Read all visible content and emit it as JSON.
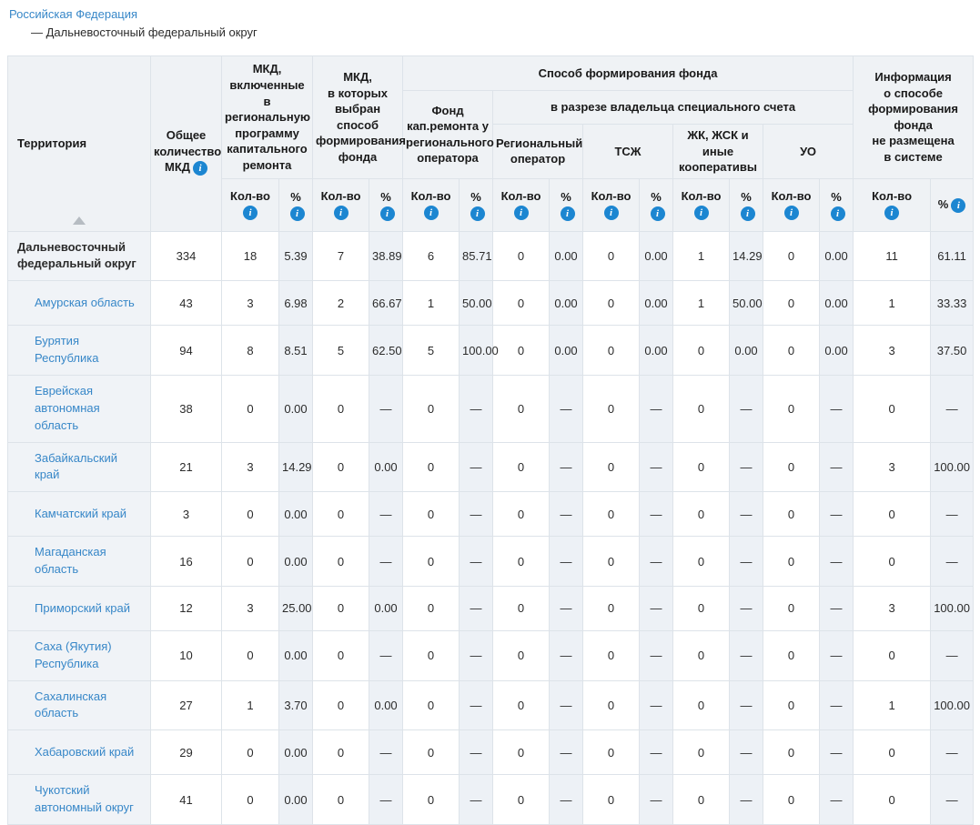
{
  "breadcrumb": {
    "country_link": "Российская Федерация",
    "region_line": "— Дальневосточный федеральный округ"
  },
  "icons": {
    "info_char": "i",
    "sort_direction": "asc"
  },
  "colors": {
    "link_blue": "#3787c8",
    "info_icon_blue": "#1c86d1",
    "header_bg": "#eff2f5",
    "shaded_column_bg": "#edf1f6",
    "territory_column_bg": "#f0f3f7",
    "grid_line": "#dde3e9",
    "sort_arrow_grey": "#b6bcc2"
  },
  "table": {
    "header": {
      "territory": "Территория",
      "total": "Общее\nколичество\nМКД",
      "included": "МКД,\nвключенные в\nрегиональную\nпрограмму\nкапитального\nремонта",
      "method_chosen": "МКД,\nв которых\nвыбран способ\nформирования\nфонда",
      "method_group": "Способ формирования фонда",
      "fund_regional_operator": "Фонд\nкап.ремонта у\nрегионального\nоператора",
      "special_account_group": "в разрезе владельца специального счета",
      "regional_operator": "Региональный\nоператор",
      "tsj": "ТСЖ",
      "jk_jsk": "ЖК, ЖСК и иные\nкооперативы",
      "uo": "УО",
      "not_posted": "Информация\nо способе\nформирования\nфонда\nне размещена\nв системе",
      "qty": "Кол-во",
      "pct": "%"
    },
    "rows": [
      {
        "territory": "Дальневосточный федеральный округ",
        "bold": true,
        "link": false,
        "values": [
          "334",
          "18",
          "5.39",
          "7",
          "38.89",
          "6",
          "85.71",
          "0",
          "0.00",
          "0",
          "0.00",
          "1",
          "14.29",
          "0",
          "0.00",
          "11",
          "61.11"
        ]
      },
      {
        "territory": "Амурская область",
        "bold": false,
        "link": true,
        "values": [
          "43",
          "3",
          "6.98",
          "2",
          "66.67",
          "1",
          "50.00",
          "0",
          "0.00",
          "0",
          "0.00",
          "1",
          "50.00",
          "0",
          "0.00",
          "1",
          "33.33"
        ]
      },
      {
        "territory": "Бурятия Республика",
        "bold": false,
        "link": true,
        "values": [
          "94",
          "8",
          "8.51",
          "5",
          "62.50",
          "5",
          "100.00",
          "0",
          "0.00",
          "0",
          "0.00",
          "0",
          "0.00",
          "0",
          "0.00",
          "3",
          "37.50"
        ]
      },
      {
        "territory": "Еврейская автономная область",
        "bold": false,
        "link": true,
        "values": [
          "38",
          "0",
          "0.00",
          "0",
          "—",
          "0",
          "—",
          "0",
          "—",
          "0",
          "—",
          "0",
          "—",
          "0",
          "—",
          "0",
          "—"
        ]
      },
      {
        "territory": "Забайкальский край",
        "bold": false,
        "link": true,
        "values": [
          "21",
          "3",
          "14.29",
          "0",
          "0.00",
          "0",
          "—",
          "0",
          "—",
          "0",
          "—",
          "0",
          "—",
          "0",
          "—",
          "3",
          "100.00"
        ]
      },
      {
        "territory": "Камчатский край",
        "bold": false,
        "link": true,
        "values": [
          "3",
          "0",
          "0.00",
          "0",
          "—",
          "0",
          "—",
          "0",
          "—",
          "0",
          "—",
          "0",
          "—",
          "0",
          "—",
          "0",
          "—"
        ]
      },
      {
        "territory": "Магаданская область",
        "bold": false,
        "link": true,
        "values": [
          "16",
          "0",
          "0.00",
          "0",
          "—",
          "0",
          "—",
          "0",
          "—",
          "0",
          "—",
          "0",
          "—",
          "0",
          "—",
          "0",
          "—"
        ]
      },
      {
        "territory": "Приморский край",
        "bold": false,
        "link": true,
        "values": [
          "12",
          "3",
          "25.00",
          "0",
          "0.00",
          "0",
          "—",
          "0",
          "—",
          "0",
          "—",
          "0",
          "—",
          "0",
          "—",
          "3",
          "100.00"
        ]
      },
      {
        "territory": "Саха (Якутия) Республика",
        "bold": false,
        "link": true,
        "values": [
          "10",
          "0",
          "0.00",
          "0",
          "—",
          "0",
          "—",
          "0",
          "—",
          "0",
          "—",
          "0",
          "—",
          "0",
          "—",
          "0",
          "—"
        ]
      },
      {
        "territory": "Сахалинская область",
        "bold": false,
        "link": true,
        "values": [
          "27",
          "1",
          "3.70",
          "0",
          "0.00",
          "0",
          "—",
          "0",
          "—",
          "0",
          "—",
          "0",
          "—",
          "0",
          "—",
          "1",
          "100.00"
        ]
      },
      {
        "territory": "Хабаровский край",
        "bold": false,
        "link": true,
        "values": [
          "29",
          "0",
          "0.00",
          "0",
          "—",
          "0",
          "—",
          "0",
          "—",
          "0",
          "—",
          "0",
          "—",
          "0",
          "—",
          "0",
          "—"
        ]
      },
      {
        "territory": "Чукотский автономный округ",
        "bold": false,
        "link": true,
        "values": [
          "41",
          "0",
          "0.00",
          "0",
          "—",
          "0",
          "—",
          "0",
          "—",
          "0",
          "—",
          "0",
          "—",
          "0",
          "—",
          "0",
          "—"
        ]
      }
    ]
  }
}
